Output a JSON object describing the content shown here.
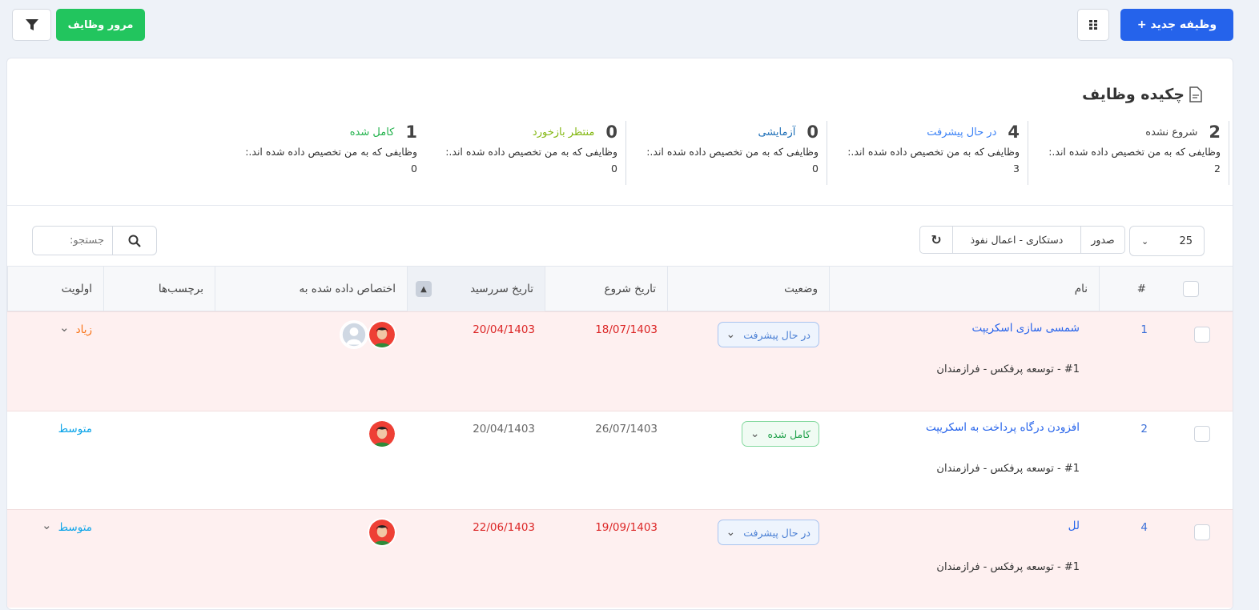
{
  "toolbar": {
    "new_task": "+ وظیفه جدید",
    "review_tasks": "مرور وظایف"
  },
  "summary": {
    "title": "چکیده وظایف",
    "items": [
      {
        "count": "2",
        "label": "شروع نشده",
        "desc": "وظایفی که به من تخصیص داده شده اند.: 2",
        "color": "#444444"
      },
      {
        "count": "4",
        "label": "در حال پیشرفت",
        "desc": "وظایفی که به من تخصیص داده شده اند.: 3",
        "color": "#3b82f6"
      },
      {
        "count": "0",
        "label": "آزمایشی",
        "desc": "وظایفی که به من تخصیص داده شده اند.: 0",
        "color": "#1e6fb8"
      },
      {
        "count": "0",
        "label": "منتظر بازخورد",
        "desc": "وظایفی که به من تخصیص داده شده اند.: 0",
        "color": "#84b814"
      },
      {
        "count": "1",
        "label": "کامل شده",
        "desc": "وظایفی که به من تخصیص داده شده اند.: 0",
        "color": "#22b24c"
      }
    ]
  },
  "controls": {
    "page_size": "25",
    "export": "صدور",
    "bulk_actions": "دستکاری - اعمال نفوذ",
    "search_placeholder": "جستجو:"
  },
  "table": {
    "headers": {
      "num": "#",
      "name": "نام",
      "status": "وضعیت",
      "start": "تاریخ شروع",
      "due": "تاریخ سررسید",
      "assigned": "اختصاص داده شده به",
      "tags": "برچسب‌ها",
      "priority": "اولویت"
    },
    "rows": [
      {
        "num": "1",
        "name": "شمسی سازی اسکریپت",
        "project": "#1 - توسعه پرفکس - فرازمندان",
        "status": "در حال پیشرفت",
        "start": "18/07/1403",
        "due": "20/04/1403",
        "priority": "زیاد",
        "priority_color": "#f97316",
        "overdue": true
      },
      {
        "num": "2",
        "name": "افزودن درگاه پرداخت به اسکریپت",
        "project": "#1 - توسعه پرفکس - فرازمندان",
        "status": "کامل شده",
        "start": "26/07/1403",
        "due": "20/04/1403",
        "priority": "متوسط",
        "priority_color": "#0ea5e9",
        "overdue": false
      },
      {
        "num": "4",
        "name": "لل",
        "project": "#1 - توسعه پرفکس - فرازمندان",
        "status": "در حال پیشرفت",
        "start": "19/09/1403",
        "due": "22/06/1403",
        "priority": "متوسط",
        "priority_color": "#0ea5e9",
        "overdue": true
      }
    ]
  }
}
